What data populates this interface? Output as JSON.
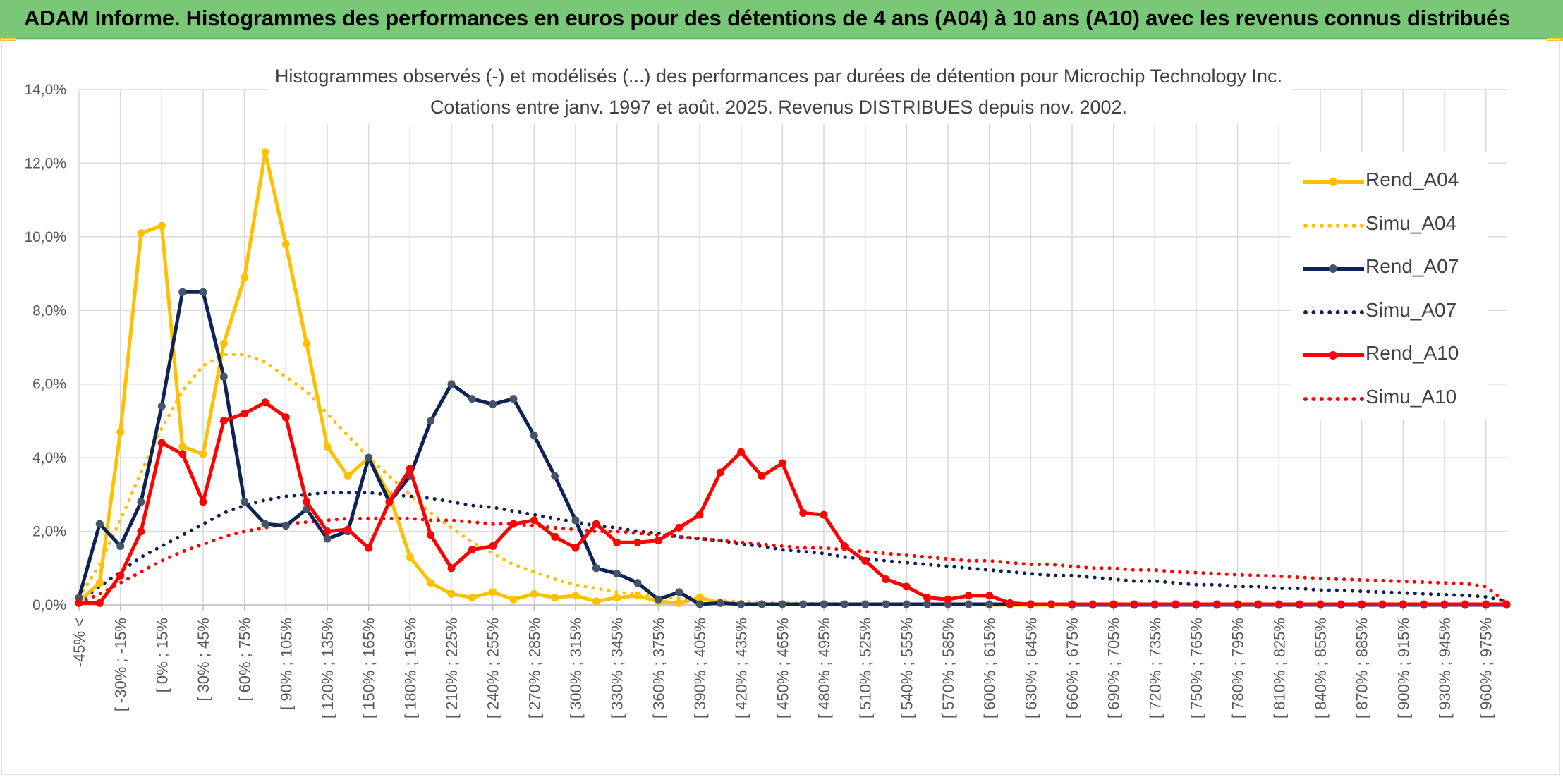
{
  "banner": {
    "title": "ADAM Informe. Histogrammes des performances en euros pour des détentions de 4 ans (A04) à 10 ans (A10) avec les revenus connus distribués",
    "color": "#78c878"
  },
  "chart_data": {
    "type": "line",
    "title": "Histogrammes observés (-) et modélisés (...) des performances par durées de détention pour Microchip Technology Inc.",
    "subtitle": "Cotations entre janv. 1997 et août. 2025. Revenus DISTRIBUES depuis nov. 2002.",
    "xlabel": "",
    "ylabel": "",
    "ylim": [
      0,
      14
    ],
    "ytick_labels": [
      "0,0%",
      "2,0%",
      "4,0%",
      "6,0%",
      "8,0%",
      "10,0%",
      "12,0%",
      "14,0%"
    ],
    "grid": true,
    "legend_position": "right",
    "x_tick_labels": [
      "-45% <",
      "[ -30% ; -15%",
      "[ 0% ; 15%",
      "[ 30% ; 45%",
      "[ 60% ; 75%",
      "[ 90% ; 105%",
      "[ 120% ; 135%",
      "[ 150% ; 165%",
      "[ 180% ; 195%",
      "[ 210% ; 225%",
      "[ 240% ; 255%",
      "[ 270% ; 285%",
      "[ 300% ; 315%",
      "[ 330% ; 345%",
      "[ 360% ; 375%",
      "[ 390% ; 405%",
      "[ 420% ; 435%",
      "[ 450% ; 465%",
      "[ 480% ; 495%",
      "[ 510% ; 525%",
      "[ 540% ; 555%",
      "[ 570% ; 585%",
      "[ 600% ; 615%",
      "[ 630% ; 645%",
      "[ 660% ; 675%",
      "[ 690% ; 705%",
      "[ 720% ; 735%",
      "[ 750% ; 765%",
      "[ 780% ; 795%",
      "[ 810% ; 825%",
      "[ 840% ; 855%",
      "[ 870% ; 885%",
      "[ 900% ; 915%",
      "[ 930% ; 945%",
      "[ 960% ; 975%"
    ],
    "n_points": 70,
    "series": [
      {
        "name": "Rend_A04",
        "color": "#ffc000",
        "style": "solid",
        "values": [
          0.1,
          0.6,
          4.7,
          10.1,
          10.3,
          4.3,
          4.1,
          7.1,
          8.9,
          12.3,
          9.8,
          7.1,
          4.3,
          3.5,
          4.0,
          3.0,
          1.3,
          0.6,
          0.3,
          0.2,
          0.35,
          0.15,
          0.3,
          0.2,
          0.25,
          0.1,
          0.2,
          0.25,
          0.1,
          0.05,
          0.2,
          0.05,
          0.02,
          0.02,
          0.02,
          0.02,
          0.02,
          0.02,
          0.02,
          0.02,
          0.02,
          0.02,
          0.02,
          0.02,
          0,
          0,
          0,
          0,
          0,
          0,
          0,
          0,
          0,
          0,
          0,
          0,
          0,
          0,
          0,
          0,
          0,
          0,
          0,
          0,
          0,
          0,
          0,
          0,
          0,
          0
        ]
      },
      {
        "name": "Simu_A04",
        "color": "#ffc000",
        "style": "dotted",
        "values": [
          0.2,
          1.1,
          2.3,
          3.6,
          4.8,
          5.8,
          6.5,
          6.8,
          6.8,
          6.6,
          6.2,
          5.8,
          5.2,
          4.6,
          4.0,
          3.5,
          3.0,
          2.5,
          2.1,
          1.7,
          1.4,
          1.1,
          0.9,
          0.7,
          0.55,
          0.45,
          0.35,
          0.28,
          0.22,
          0.18,
          0.14,
          0.11,
          0.09,
          0.07,
          0.05,
          0.04,
          0.03,
          0.03,
          0.02,
          0.02,
          0.01,
          0.01,
          0.01,
          0.01,
          0.01,
          0,
          0,
          0,
          0,
          0,
          0,
          0,
          0,
          0,
          0,
          0,
          0,
          0,
          0,
          0,
          0,
          0,
          0,
          0,
          0,
          0,
          0,
          0,
          0,
          0
        ]
      },
      {
        "name": "Rend_A07",
        "color": "#0d2356",
        "style": "solid",
        "values": [
          0.2,
          2.2,
          1.6,
          2.8,
          5.4,
          8.5,
          8.5,
          6.2,
          2.8,
          2.2,
          2.15,
          2.6,
          1.8,
          2.0,
          4.0,
          2.8,
          3.5,
          5.0,
          6.0,
          5.6,
          5.45,
          5.6,
          4.6,
          3.5,
          2.3,
          1.0,
          0.85,
          0.6,
          0.15,
          0.35,
          0.02,
          0.05,
          0.02,
          0.02,
          0.02,
          0.02,
          0.02,
          0.02,
          0.02,
          0.02,
          0.02,
          0.02,
          0.02,
          0.02,
          0.02,
          0.02,
          0.02,
          0.02,
          0,
          0,
          0,
          0,
          0,
          0,
          0,
          0,
          0,
          0,
          0,
          0,
          0,
          0,
          0,
          0,
          0,
          0,
          0,
          0,
          0,
          0
        ]
      },
      {
        "name": "Simu_A07",
        "color": "#0d2356",
        "style": "dotted",
        "values": [
          0.1,
          0.5,
          0.9,
          1.3,
          1.6,
          1.9,
          2.2,
          2.5,
          2.7,
          2.85,
          2.95,
          3.0,
          3.05,
          3.05,
          3.05,
          3.0,
          2.95,
          2.9,
          2.8,
          2.7,
          2.65,
          2.55,
          2.45,
          2.35,
          2.25,
          2.15,
          2.1,
          2.0,
          1.95,
          1.85,
          1.8,
          1.75,
          1.65,
          1.6,
          1.5,
          1.45,
          1.4,
          1.3,
          1.25,
          1.2,
          1.15,
          1.1,
          1.05,
          1.0,
          0.95,
          0.9,
          0.85,
          0.8,
          0.8,
          0.75,
          0.7,
          0.65,
          0.65,
          0.6,
          0.55,
          0.55,
          0.5,
          0.5,
          0.45,
          0.45,
          0.4,
          0.4,
          0.37,
          0.35,
          0.33,
          0.3,
          0.28,
          0.26,
          0.22,
          0.1
        ]
      },
      {
        "name": "Rend_A10",
        "color": "#ff0000",
        "style": "solid",
        "values": [
          0.05,
          0.05,
          0.8,
          2.0,
          4.4,
          4.1,
          2.8,
          5.0,
          5.2,
          5.5,
          5.1,
          2.8,
          2.0,
          2.05,
          1.55,
          2.8,
          3.7,
          1.9,
          1.0,
          1.5,
          1.6,
          2.2,
          2.3,
          1.85,
          1.55,
          2.2,
          1.7,
          1.7,
          1.75,
          2.1,
          2.45,
          3.6,
          4.15,
          3.5,
          3.85,
          2.5,
          2.45,
          1.6,
          1.2,
          0.7,
          0.5,
          0.2,
          0.15,
          0.25,
          0.25,
          0.05,
          0.02,
          0.02,
          0.02,
          0.02,
          0.02,
          0.02,
          0.02,
          0.02,
          0.02,
          0.02,
          0.02,
          0.02,
          0.02,
          0.02,
          0.02,
          0.02,
          0.02,
          0.02,
          0.02,
          0.02,
          0.02,
          0.02,
          0.02,
          0.02
        ]
      },
      {
        "name": "Simu_A10",
        "color": "#ff0000",
        "style": "dotted",
        "values": [
          0.05,
          0.3,
          0.6,
          0.9,
          1.2,
          1.45,
          1.65,
          1.85,
          2.0,
          2.1,
          2.2,
          2.25,
          2.3,
          2.35,
          2.35,
          2.35,
          2.35,
          2.3,
          2.3,
          2.25,
          2.2,
          2.2,
          2.15,
          2.1,
          2.05,
          2.0,
          2.0,
          1.95,
          1.9,
          1.85,
          1.8,
          1.75,
          1.7,
          1.65,
          1.6,
          1.55,
          1.55,
          1.5,
          1.45,
          1.4,
          1.35,
          1.3,
          1.25,
          1.2,
          1.2,
          1.15,
          1.1,
          1.1,
          1.05,
          1.0,
          1.0,
          0.95,
          0.95,
          0.9,
          0.88,
          0.85,
          0.82,
          0.8,
          0.78,
          0.75,
          0.72,
          0.7,
          0.68,
          0.66,
          0.64,
          0.62,
          0.6,
          0.58,
          0.5,
          0.05
        ]
      }
    ]
  }
}
